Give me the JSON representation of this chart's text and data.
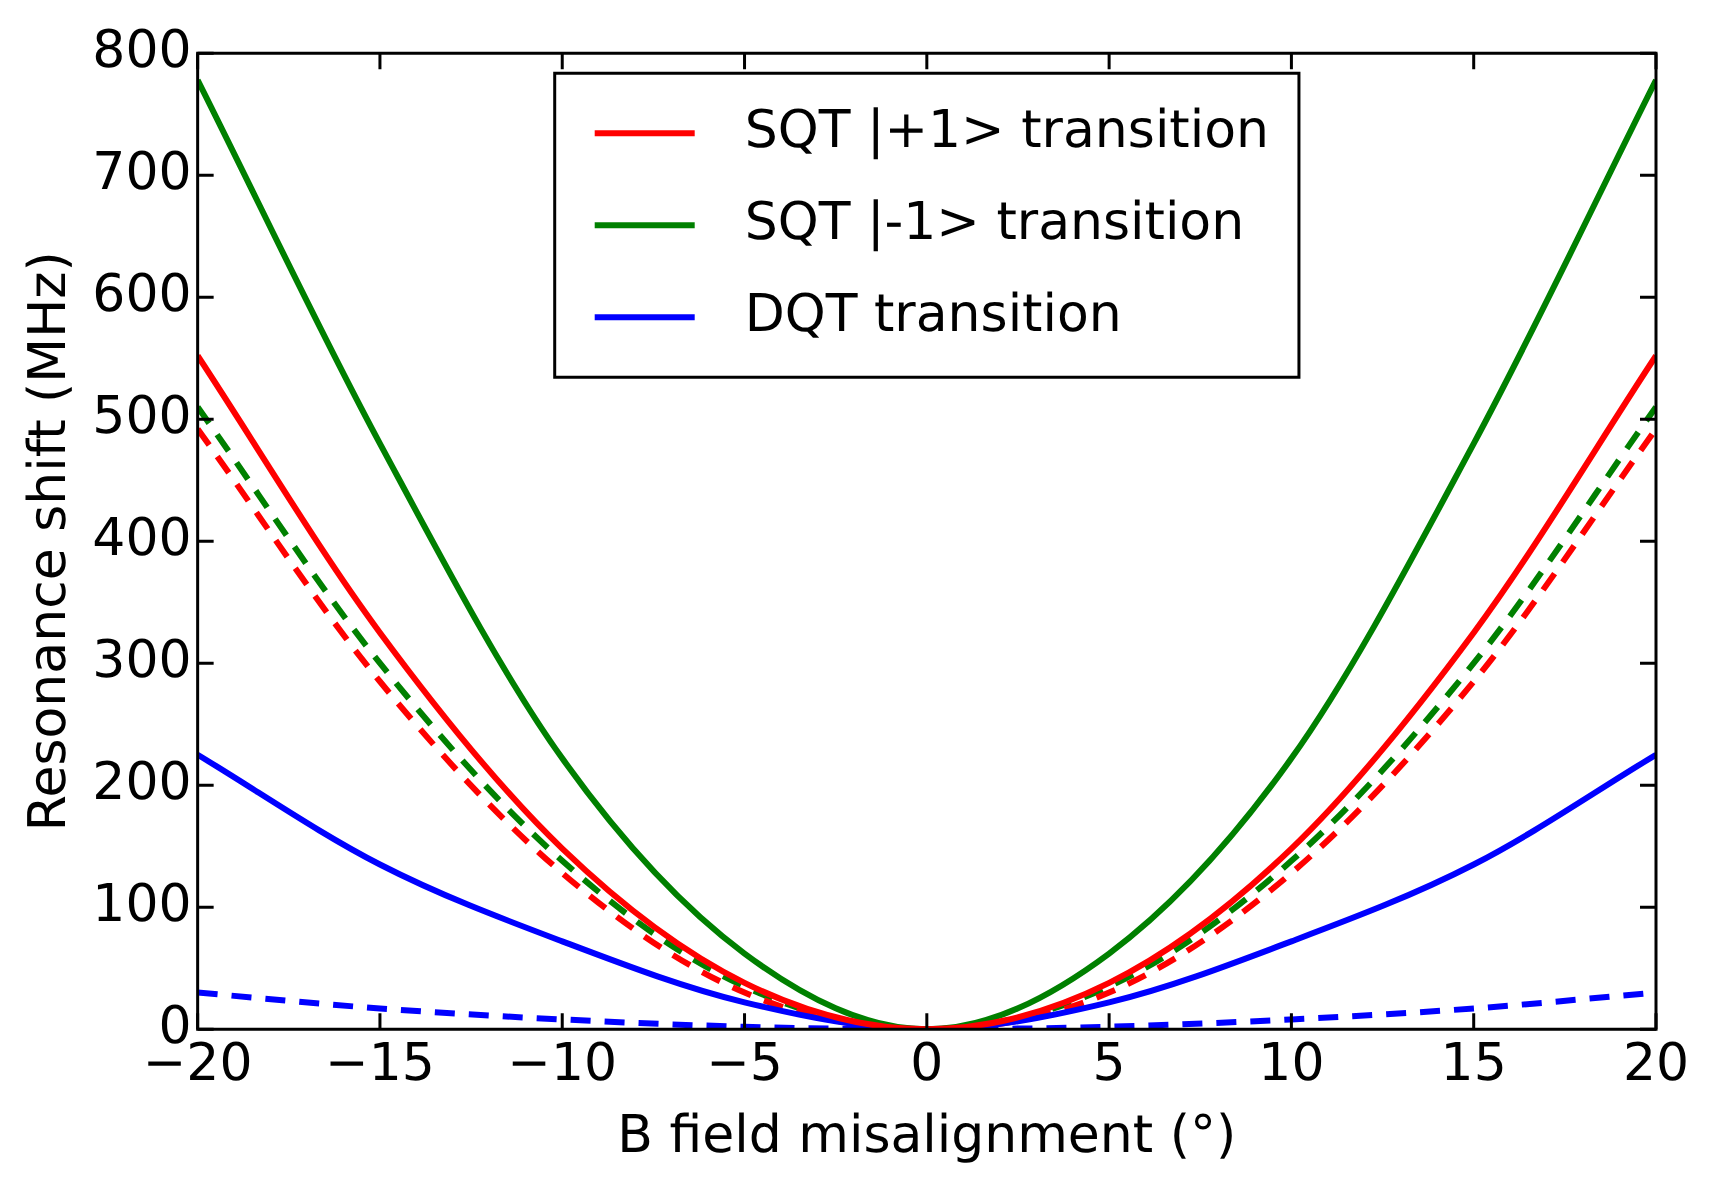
{
  "chart_data": {
    "type": "line",
    "xlabel": "B field misalignment (°)",
    "ylabel": "Resonance shift (MHz)",
    "x": [
      -20,
      -15,
      -10,
      -5,
      0,
      5,
      10,
      15,
      20
    ],
    "xlim": [
      -20,
      20
    ],
    "xticks": [
      {
        "value": -20,
        "label": "−20"
      },
      {
        "value": -15,
        "label": "−15"
      },
      {
        "value": -10,
        "label": "−10"
      },
      {
        "value": -5,
        "label": "−5"
      },
      0,
      5,
      10,
      15,
      20
    ],
    "ylim": [
      0,
      800
    ],
    "yticks": [
      0,
      100,
      200,
      300,
      400,
      500,
      600,
      700,
      800
    ],
    "legend": "top",
    "grid": false,
    "series": [
      {
        "name": "SQT |+1> transition",
        "color": "#ff0000",
        "values": [
          552,
          325,
          148,
          38,
          0,
          38,
          148,
          325,
          552
        ]
      },
      {
        "name": "SQT |-1> transition",
        "color": "#008000",
        "values": [
          778,
          480,
          222,
          62,
          0,
          62,
          222,
          480,
          778
        ]
      },
      {
        "name": "DQT transition",
        "color": "#0000ff",
        "values": [
          225,
          135,
          72,
          22,
          0,
          22,
          72,
          135,
          225
        ]
      },
      {
        "color": "#ff0000",
        "line_style": "dashed",
        "values": [
          492,
          285,
          128,
          30,
          0,
          30,
          128,
          285,
          492
        ]
      },
      {
        "color": "#008000",
        "line_style": "dashed",
        "values": [
          510,
          300,
          138,
          35,
          0,
          35,
          138,
          300,
          510
        ]
      },
      {
        "color": "#0000ff",
        "line_style": "dashed",
        "values": [
          30,
          17,
          8,
          2,
          0,
          2,
          8,
          17,
          30
        ]
      }
    ]
  }
}
